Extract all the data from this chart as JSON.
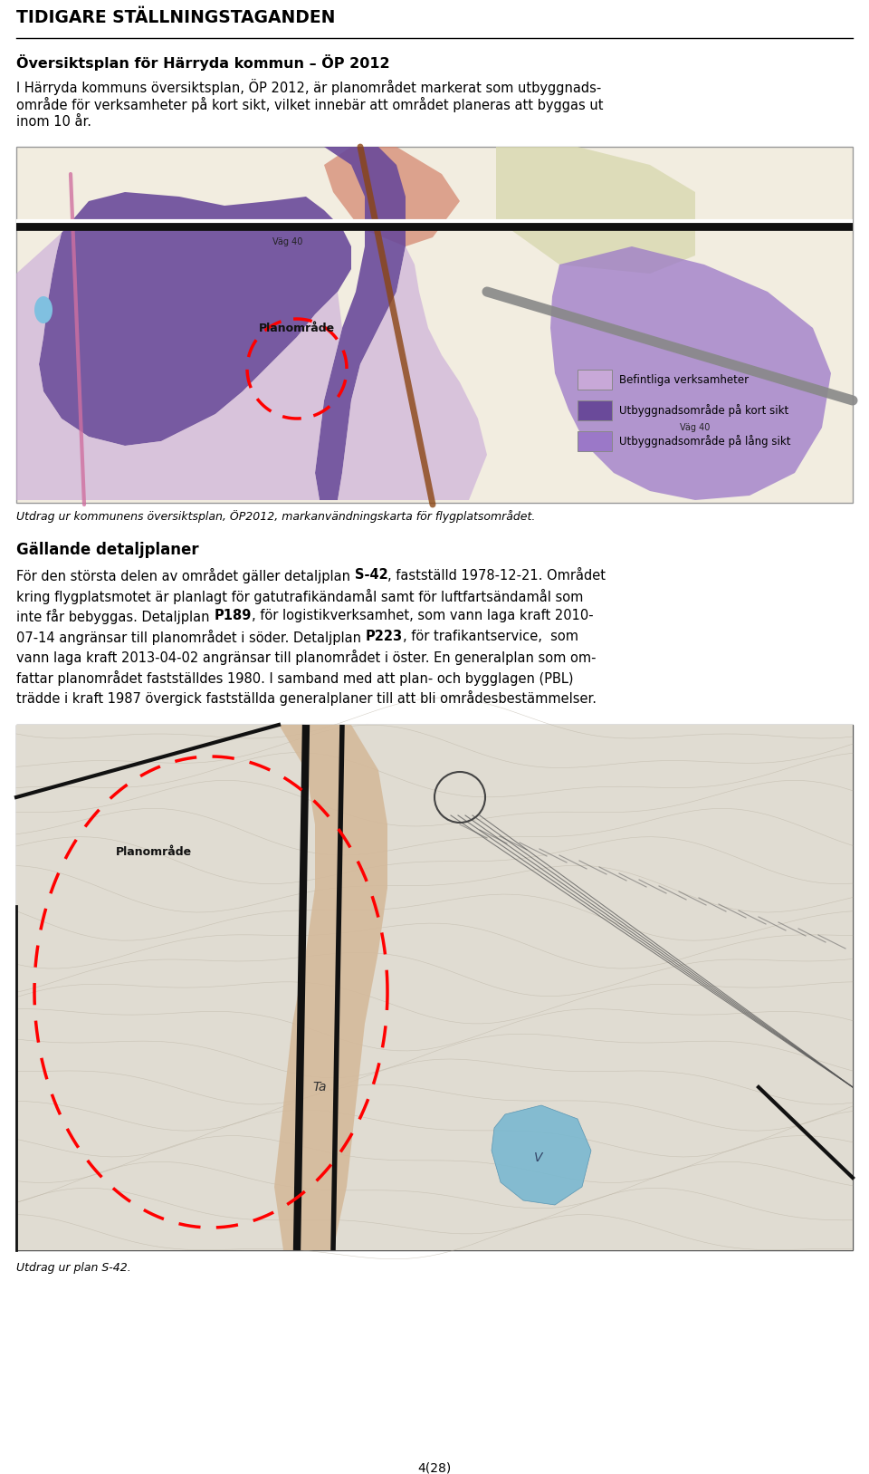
{
  "title": "TIDIGARE STÄLLNINGSTAGANDEN",
  "section1_heading": "Översiktsplan för Härryda kommun – ÖP 2012",
  "section1_body_line1": "I Härryda kommuns översiktsplan, ÖP 2012, är planområdet markerat som utbyggnads-",
  "section1_body_line2": "område för verksamheter på kort sikt, vilket innebär att området planeras att byggas ut",
  "section1_body_line3": "inom 10 år.",
  "caption1": "Utdrag ur kommunens översiktsplan, ÖP2012, markanvändningskarta för flygplatsområdet.",
  "section2_heading": "Gällande detaljplaner",
  "caption2": "Utdrag ur plan S-42.",
  "page_number": "4(28)",
  "bg_color": "#ffffff",
  "text_color": "#000000",
  "map1_bg": "#f5f0e8",
  "map1_light_purple": "#c8a8d8",
  "map1_dark_purple": "#7050a8",
  "map1_medium_purple": "#9878c0",
  "map2_bg": "#d8d4c8",
  "map2_tan": "#d4b898",
  "map2_blue": "#7ab8d0"
}
